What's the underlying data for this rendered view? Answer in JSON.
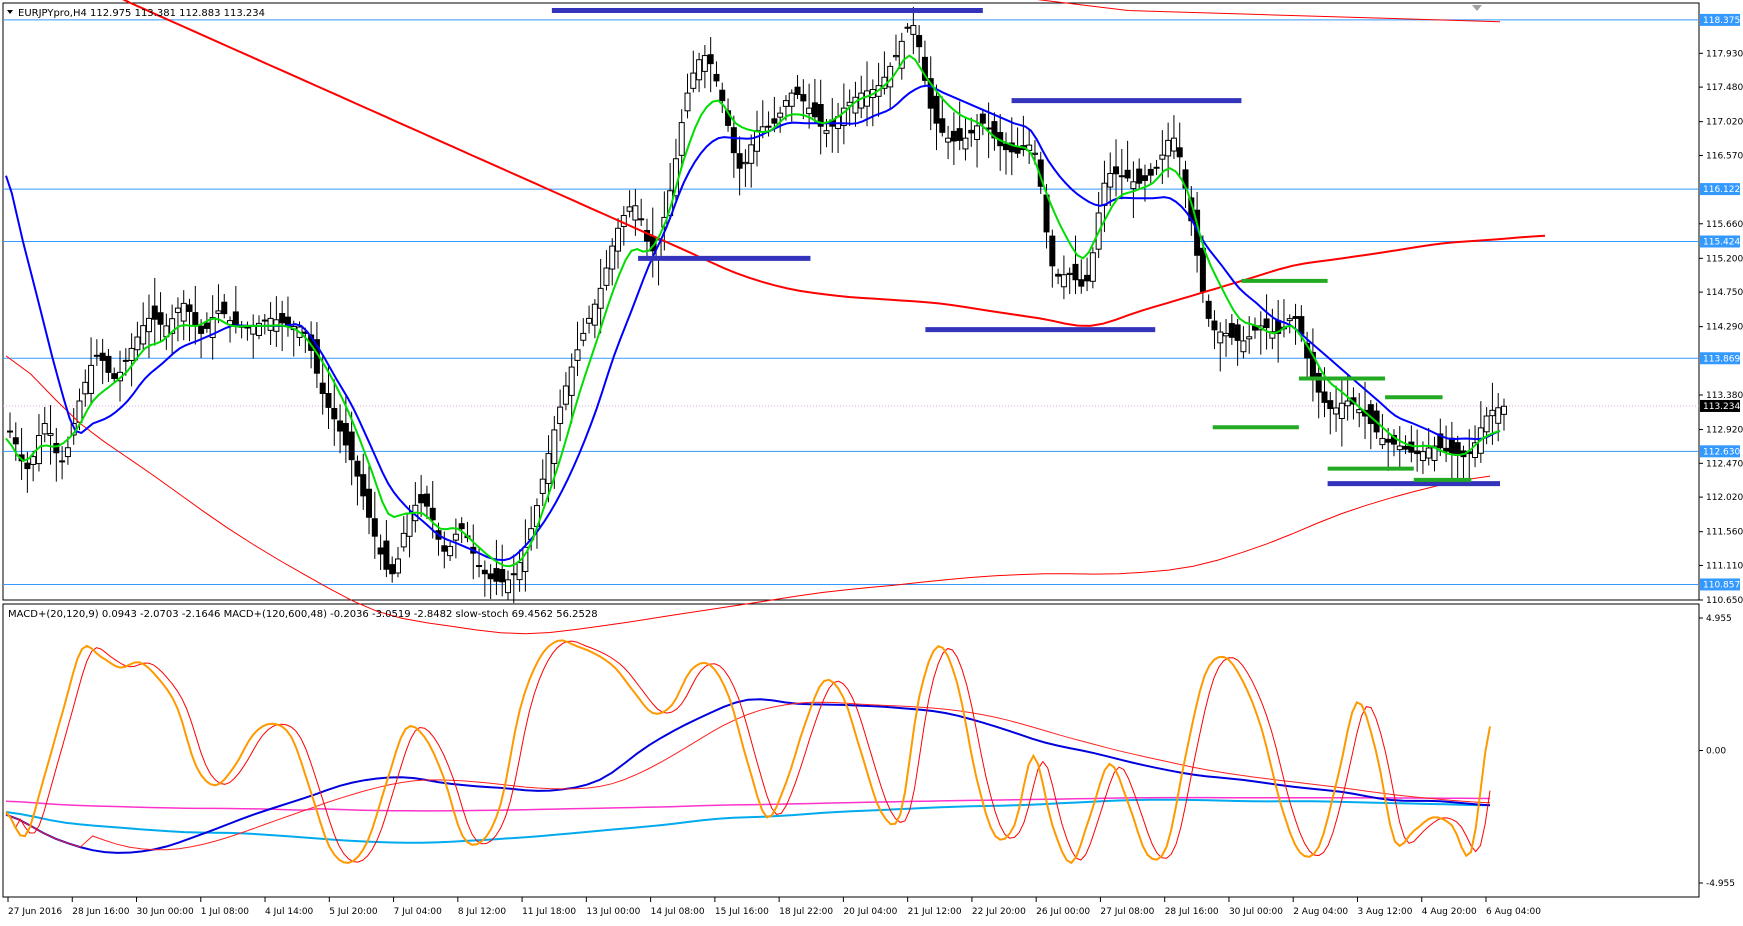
{
  "header": {
    "symbol_info": "EURJPYpro,H4  112.975 113.381 112.883 113.234"
  },
  "indicator_header": {
    "text": "MACD+(20,120,9) 0.0943 -2.0703 -2.1646  MACD+(120,600,48) -0.2036 -3.0519 -2.8482  slow-stoch 69.4562 56.2528"
  },
  "colors": {
    "bull": "#ffffff",
    "bear": "#000000",
    "ema_fast": "#00dd00",
    "ema_mid": "#0000ff",
    "ma_slow": "#ff0000",
    "level": "#3399ff",
    "support_blue": "#3333bb",
    "support_green": "#22aa22",
    "stoch_main": "#ff9900",
    "stoch_signal": "#ff0000",
    "macd_short": "#0000dd",
    "macd_short_signal": "#ff2222",
    "macd_long": "#00aaee",
    "macd_long_signal": "#ff33cc"
  },
  "chart_data": [
    {
      "type": "candlestick",
      "title": "EURJPYpro,H4",
      "ylim": [
        110.65,
        118.6
      ],
      "price_ticks": [
        "117.930",
        "117.480",
        "117.020",
        "116.570",
        "116.122",
        "115.660",
        "115.424",
        "115.200",
        "114.750",
        "114.290",
        "113.869",
        "113.380",
        "113.234",
        "112.920",
        "112.630",
        "112.470",
        "112.020",
        "111.560",
        "111.110",
        "110.857",
        "110.650"
      ],
      "x_labels": [
        "27 Jun 2016",
        "28 Jun 16:00",
        "30 Jun 00:00",
        "1 Jul 08:00",
        "4 Jul 14:00",
        "5 Jul 20:00",
        "7 Jul 04:00",
        "8 Jul 12:00",
        "11 Jul 18:00",
        "13 Jul 00:00",
        "14 Jul 08:00",
        "15 Jul 16:00",
        "18 Jul 22:00",
        "20 Jul 04:00",
        "21 Jul 12:00",
        "22 Jul 20:00",
        "26 Jul 00:00",
        "27 Jul 08:00",
        "28 Jul 16:00",
        "30 Jul 00:00",
        "2 Aug 04:00",
        "3 Aug 12:00",
        "4 Aug 20:00",
        "6 Aug 04:00"
      ],
      "highlighted_levels": [
        {
          "label": "118.375",
          "value": 118.375
        },
        {
          "label": "116.122",
          "value": 116.122
        },
        {
          "label": "115.424",
          "value": 115.424
        },
        {
          "label": "113.869",
          "value": 113.869
        },
        {
          "label": "112.630",
          "value": 112.63
        },
        {
          "label": "110.857",
          "value": 110.857
        }
      ],
      "current_price": {
        "label": "113.234",
        "value": 113.234
      },
      "close_path": [
        112.9,
        112.4,
        113.0,
        112.5,
        113.3,
        113.9,
        113.6,
        114.0,
        114.4,
        114.3,
        114.6,
        114.2,
        114.5,
        114.3,
        114.3,
        114.4,
        114.3,
        114.2,
        113.4,
        112.9,
        112.3,
        111.5,
        111.0,
        111.8,
        111.9,
        111.3,
        111.6,
        111.1,
        110.9,
        111.0,
        111.6,
        112.6,
        113.5,
        114.2,
        114.8,
        115.6,
        115.9,
        115.3,
        116.1,
        117.4,
        117.9,
        117.3,
        116.4,
        116.9,
        117.0,
        117.4,
        117.2,
        116.9,
        117.2,
        117.4,
        117.5,
        117.9,
        118.3,
        117.2,
        116.8,
        116.8,
        117.0,
        116.7,
        116.6,
        116.6,
        115.1,
        115.0,
        114.9,
        116.2,
        116.3,
        116.2,
        116.4,
        116.8,
        115.7,
        114.4,
        114.2,
        114.1,
        114.3,
        114.2,
        114.4,
        113.6,
        113.2,
        113.3,
        113.1,
        112.8,
        112.7,
        112.6,
        112.7,
        112.6,
        112.6,
        113.1,
        113.23
      ],
      "green_ema_path": [
        112.8,
        112.5,
        112.7,
        112.7,
        112.9,
        113.3,
        113.5,
        113.7,
        114.0,
        114.1,
        114.3,
        114.3,
        114.4,
        114.3,
        114.3,
        114.3,
        114.3,
        114.2,
        113.9,
        113.5,
        113.0,
        112.4,
        111.8,
        111.8,
        111.8,
        111.6,
        111.6,
        111.4,
        111.2,
        111.1,
        111.3,
        111.9,
        112.6,
        113.4,
        114.1,
        114.8,
        115.3,
        115.3,
        115.7,
        116.5,
        117.1,
        117.3,
        117.0,
        116.9,
        116.9,
        117.1,
        117.1,
        117.0,
        117.1,
        117.3,
        117.4,
        117.6,
        117.9,
        117.6,
        117.3,
        117.1,
        117.0,
        116.8,
        116.7,
        116.6,
        116.0,
        115.5,
        115.2,
        115.6,
        116.0,
        116.1,
        116.2,
        116.4,
        116.1,
        115.3,
        114.8,
        114.4,
        114.3,
        114.2,
        114.3,
        114.0,
        113.6,
        113.4,
        113.2,
        113.0,
        112.8,
        112.7,
        112.7,
        112.6,
        112.6,
        112.8,
        112.9
      ],
      "blue_ema_path": [
        116.3,
        115.4,
        114.5,
        113.6,
        112.9,
        113.0,
        113.1,
        113.3,
        113.6,
        113.8,
        114.0,
        114.1,
        114.2,
        114.3,
        114.3,
        114.3,
        114.3,
        114.3,
        114.0,
        113.6,
        113.2,
        112.7,
        112.2,
        111.9,
        111.7,
        111.5,
        111.4,
        111.3,
        111.2,
        111.2,
        111.4,
        111.7,
        112.1,
        112.6,
        113.2,
        113.9,
        114.5,
        115.1,
        115.6,
        116.2,
        116.6,
        116.8,
        116.8,
        116.8,
        116.9,
        117.0,
        117.0,
        117.0,
        117.0,
        117.0,
        117.1,
        117.2,
        117.4,
        117.5,
        117.4,
        117.3,
        117.2,
        117.1,
        117.0,
        116.9,
        116.5,
        116.2,
        116.0,
        115.9,
        116.0,
        116.0,
        116.0,
        116.0,
        115.8,
        115.4,
        115.1,
        114.8,
        114.6,
        114.4,
        114.3,
        114.1,
        113.9,
        113.7,
        113.5,
        113.3,
        113.1,
        113.0,
        112.9,
        112.8,
        112.8,
        112.8,
        112.9
      ],
      "red_ma_path": [
        118.9,
        118.6,
        118.3,
        118.0,
        117.7,
        117.4,
        117.1,
        116.8,
        116.5,
        116.2,
        115.9,
        115.6,
        115.3,
        115.0,
        114.8,
        114.7,
        114.65,
        114.6,
        114.5,
        114.4,
        114.3,
        114.5,
        114.7,
        114.9,
        115.1,
        115.2,
        115.3,
        115.4,
        115.45,
        115.5
      ],
      "red_band_upper_path": [
        118.9,
        118.7,
        118.5,
        118.45,
        118.4,
        118.35
      ],
      "red_band_lower_path": [
        113.9,
        113.0,
        112.3,
        111.6,
        111.0,
        110.5,
        110.3,
        110.2,
        110.3,
        110.45,
        110.6,
        110.75,
        110.85,
        110.95,
        111.0,
        111.0,
        111.1,
        111.4,
        111.8,
        112.1,
        112.3
      ],
      "support_lines_blue": [
        {
          "from_index": 19,
          "to_index": 27,
          "value": 118.5
        },
        {
          "from_index": 26,
          "to_index": 34,
          "value": 118.5
        },
        {
          "from_index": 22,
          "to_index": 28,
          "value": 115.2
        },
        {
          "from_index": 32,
          "to_index": 40,
          "value": 114.25
        },
        {
          "from_index": 35,
          "to_index": 43,
          "value": 117.3
        },
        {
          "from_index": 46,
          "to_index": 52,
          "value": 112.2
        }
      ],
      "support_lines_green": [
        {
          "from_index": 43,
          "to_index": 46,
          "value": 114.9
        },
        {
          "from_index": 45,
          "to_index": 48,
          "value": 113.6
        },
        {
          "from_index": 42,
          "to_index": 45,
          "value": 112.95
        },
        {
          "from_index": 46,
          "to_index": 49,
          "value": 112.4
        },
        {
          "from_index": 48,
          "to_index": 50,
          "value": 113.35
        },
        {
          "from_index": 49,
          "to_index": 51,
          "value": 112.25
        }
      ]
    },
    {
      "type": "line",
      "title": "MACD+ / slow-stoch",
      "ylim": [
        -4.955,
        4.955
      ],
      "y_ticks": [
        "4.955",
        "0.00",
        "-4.955"
      ],
      "series": [
        {
          "name": "slow-stoch",
          "values": [
            -2.3,
            -3.2,
            -1.0,
            1.5,
            3.8,
            3.5,
            3.1,
            3.3,
            2.7,
            1.6,
            -0.6,
            -1.3,
            -0.6,
            0.6,
            1.0,
            0.5,
            -1.5,
            -3.6,
            -4.2,
            -3.4,
            -1.2,
            0.8,
            0.5,
            -1.0,
            -3.2,
            -3.4,
            -2.0,
            1.5,
            3.4,
            4.1,
            3.9,
            3.6,
            3.1,
            2.2,
            1.4,
            1.7,
            3.0,
            3.2,
            2.0,
            -0.5,
            -2.5,
            -1.2,
            1.0,
            2.6,
            2.0,
            -0.2,
            -2.3,
            -2.4,
            2.0,
            3.9,
            2.5,
            -1.0,
            -3.2,
            -2.8,
            -0.2,
            -2.8,
            -4.2,
            -2.4,
            -0.5,
            -2.0,
            -3.9,
            -3.6,
            -0.2,
            2.8,
            3.5,
            2.6,
            0.8,
            -2.0,
            -3.8,
            -3.6,
            -1.0,
            1.8,
            0.0,
            -3.4,
            -3.0,
            -2.5,
            -2.8,
            -3.8,
            0.9
          ]
        },
        {
          "name": "macd_short",
          "values": [
            -2.4,
            -3.3,
            -3.8,
            -3.7,
            -3.1,
            -2.4,
            -1.8,
            -1.2,
            -1.0,
            -1.25,
            -1.4,
            -1.5,
            -1.1,
            0.2,
            1.2,
            1.9,
            1.75,
            1.7,
            1.6,
            1.4,
            0.9,
            0.3,
            -0.1,
            -0.55,
            -0.9,
            -1.1,
            -1.35,
            -1.55,
            -1.85,
            -1.9,
            -2.05
          ]
        },
        {
          "name": "macd_long",
          "values": [
            -2.3,
            -2.7,
            -2.9,
            -3.05,
            -3.1,
            -3.25,
            -3.4,
            -3.45,
            -3.35,
            -3.2,
            -3.0,
            -2.8,
            -2.55,
            -2.45,
            -2.3,
            -2.2,
            -2.1,
            -2.05,
            -1.95,
            -1.85,
            -1.85,
            -1.9,
            -1.9,
            -1.95,
            -2.0,
            -2.05
          ]
        }
      ]
    }
  ]
}
